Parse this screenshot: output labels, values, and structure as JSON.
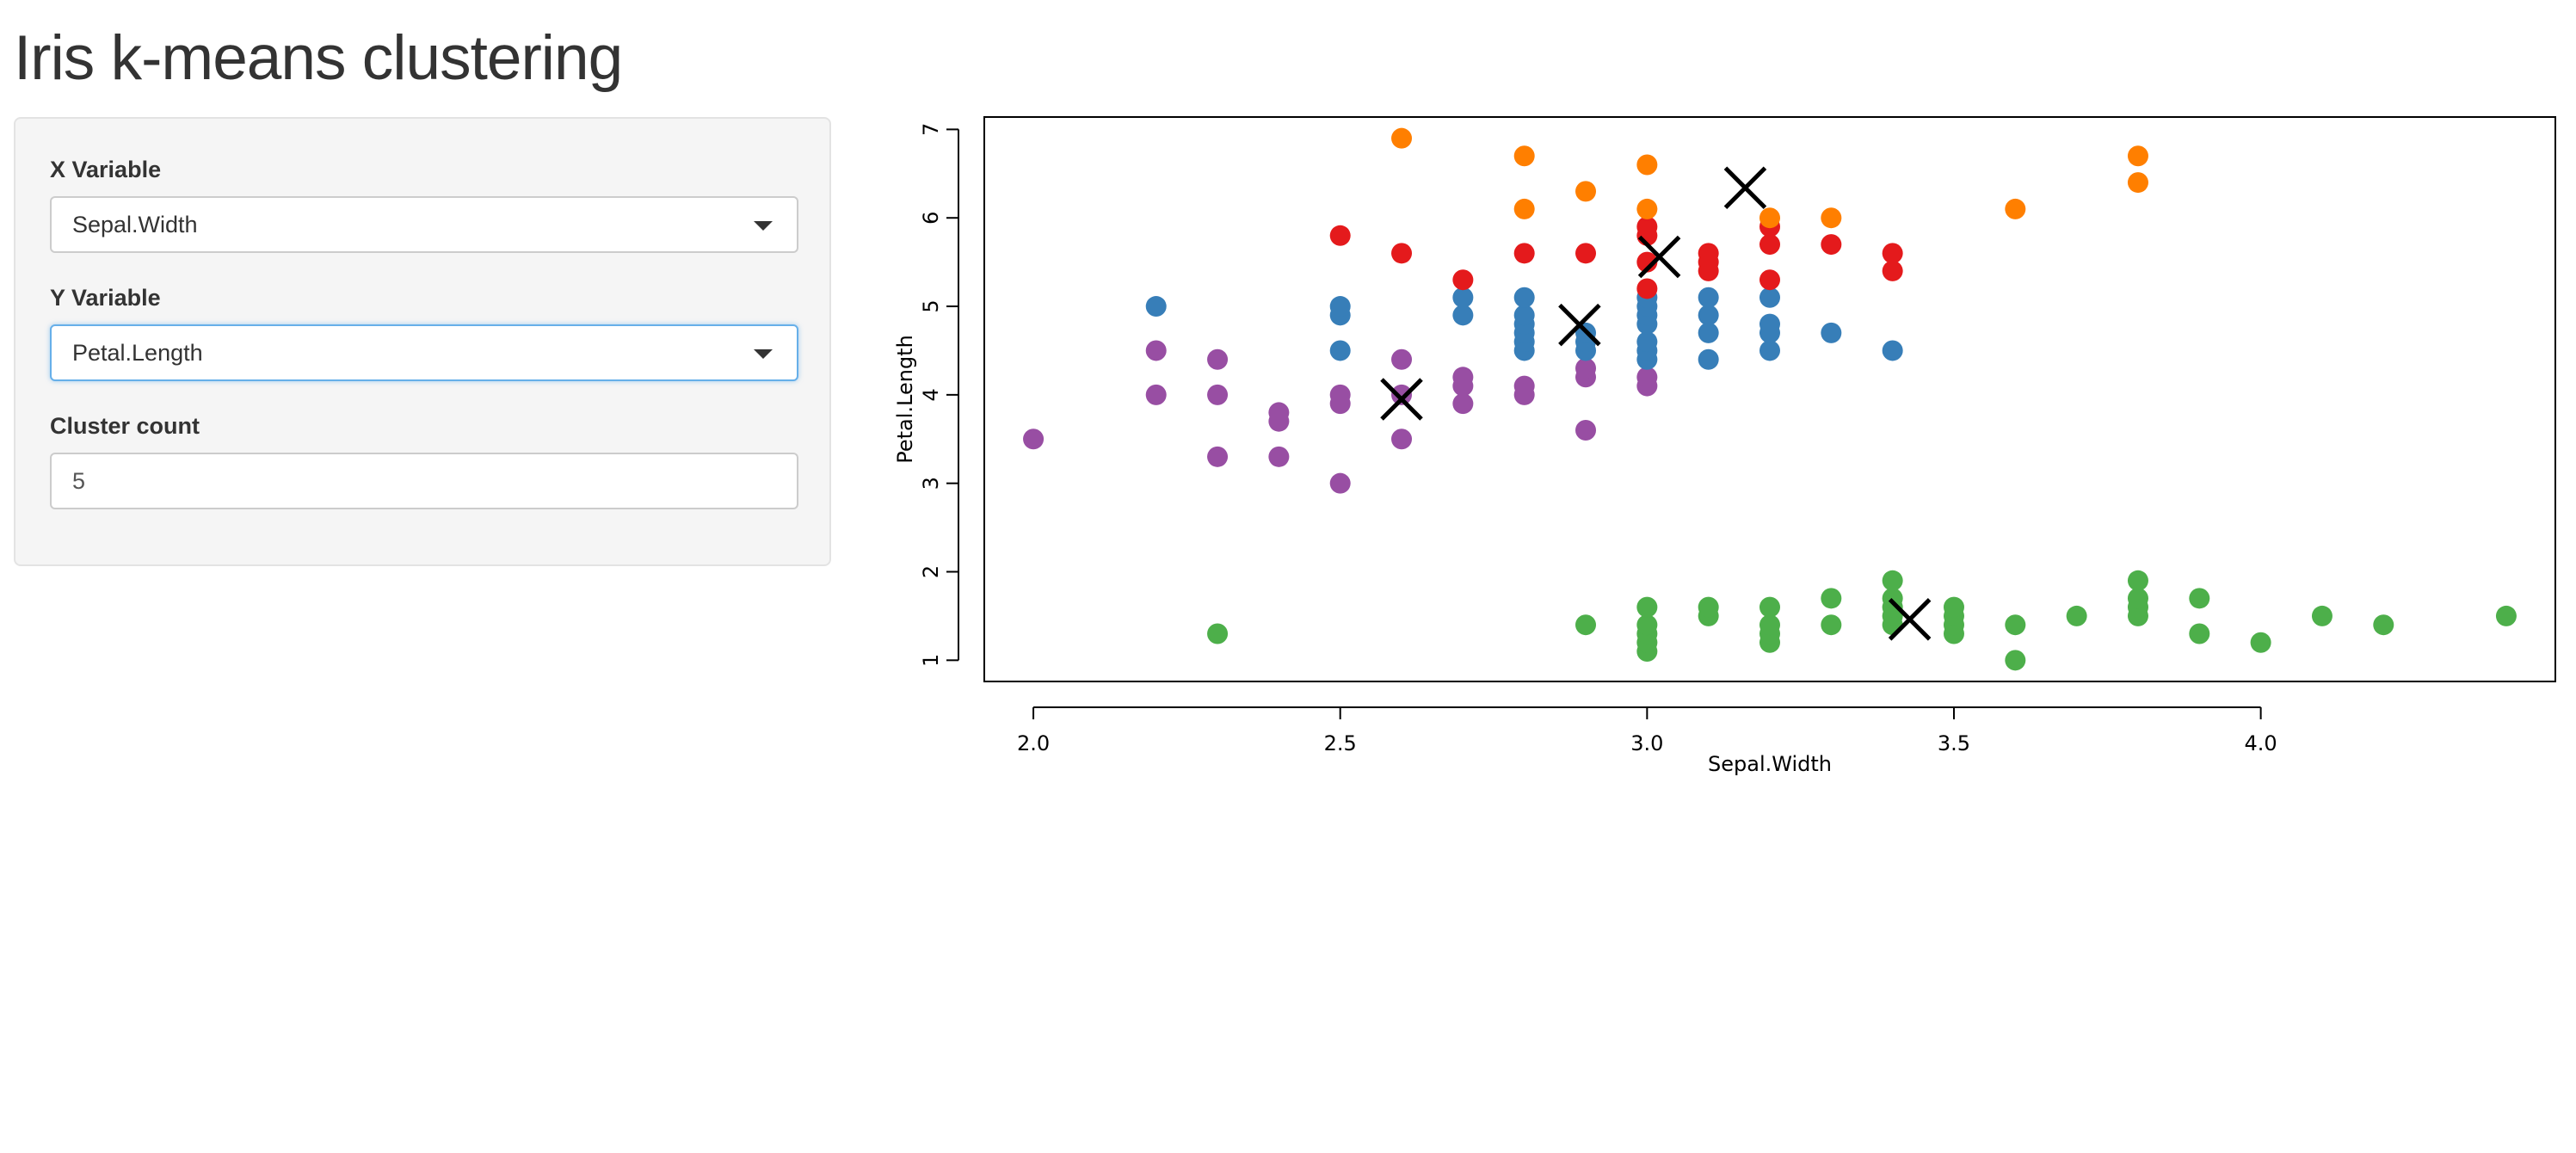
{
  "title": "Iris k-means clustering",
  "sidebar": {
    "x_label": "X Variable",
    "x_value": "Sepal.Width",
    "y_label": "Y Variable",
    "y_value": "Petal.Length",
    "count_label": "Cluster count",
    "count_value": "5"
  },
  "chart_data": {
    "type": "scatter",
    "xlabel": "Sepal.Width",
    "ylabel": "Petal.Length",
    "xlim": [
      1.92,
      4.48
    ],
    "ylim": [
      0.76,
      7.14
    ],
    "xticks": [
      "2.0",
      "2.5",
      "3.0",
      "3.5",
      "4.0"
    ],
    "yticks": [
      "1",
      "2",
      "3",
      "4",
      "5",
      "6",
      "7"
    ],
    "grid": false,
    "legend": "none",
    "series": [
      {
        "color": "#4daf4a",
        "points": [
          [
            2.3,
            1.3
          ],
          [
            2.9,
            1.4
          ],
          [
            3.0,
            1.1
          ],
          [
            3.0,
            1.2
          ],
          [
            3.0,
            1.3
          ],
          [
            3.0,
            1.4
          ],
          [
            3.0,
            1.6
          ],
          [
            3.1,
            1.5
          ],
          [
            3.1,
            1.6
          ],
          [
            3.2,
            1.2
          ],
          [
            3.2,
            1.3
          ],
          [
            3.2,
            1.4
          ],
          [
            3.2,
            1.6
          ],
          [
            3.3,
            1.4
          ],
          [
            3.3,
            1.7
          ],
          [
            3.4,
            1.4
          ],
          [
            3.4,
            1.5
          ],
          [
            3.4,
            1.6
          ],
          [
            3.4,
            1.7
          ],
          [
            3.4,
            1.9
          ],
          [
            3.5,
            1.3
          ],
          [
            3.5,
            1.4
          ],
          [
            3.5,
            1.5
          ],
          [
            3.5,
            1.6
          ],
          [
            3.6,
            1.0
          ],
          [
            3.6,
            1.4
          ],
          [
            3.7,
            1.5
          ],
          [
            3.8,
            1.5
          ],
          [
            3.8,
            1.6
          ],
          [
            3.8,
            1.7
          ],
          [
            3.8,
            1.9
          ],
          [
            3.9,
            1.3
          ],
          [
            3.9,
            1.7
          ],
          [
            4.0,
            1.2
          ],
          [
            4.1,
            1.5
          ],
          [
            4.2,
            1.4
          ],
          [
            4.4,
            1.5
          ]
        ]
      },
      {
        "color": "#984ea3",
        "points": [
          [
            2.0,
            3.5
          ],
          [
            2.2,
            4.0
          ],
          [
            2.2,
            4.5
          ],
          [
            2.3,
            3.3
          ],
          [
            2.3,
            4.0
          ],
          [
            2.3,
            4.4
          ],
          [
            2.4,
            3.3
          ],
          [
            2.4,
            3.7
          ],
          [
            2.4,
            3.8
          ],
          [
            2.5,
            3.0
          ],
          [
            2.5,
            3.9
          ],
          [
            2.5,
            4.0
          ],
          [
            2.6,
            3.5
          ],
          [
            2.6,
            4.0
          ],
          [
            2.6,
            4.4
          ],
          [
            2.7,
            3.9
          ],
          [
            2.7,
            4.1
          ],
          [
            2.7,
            4.2
          ],
          [
            2.8,
            4.0
          ],
          [
            2.8,
            4.1
          ],
          [
            2.9,
            3.6
          ],
          [
            2.9,
            4.2
          ],
          [
            2.9,
            4.3
          ],
          [
            3.0,
            4.1
          ],
          [
            3.0,
            4.2
          ]
        ]
      },
      {
        "color": "#377eb8",
        "points": [
          [
            2.2,
            5.0
          ],
          [
            2.5,
            4.5
          ],
          [
            2.5,
            4.9
          ],
          [
            2.5,
            5.0
          ],
          [
            2.7,
            4.9
          ],
          [
            2.7,
            5.1
          ],
          [
            2.8,
            4.5
          ],
          [
            2.8,
            4.6
          ],
          [
            2.8,
            4.7
          ],
          [
            2.8,
            4.8
          ],
          [
            2.8,
            4.9
          ],
          [
            2.8,
            5.1
          ],
          [
            2.9,
            4.5
          ],
          [
            2.9,
            4.6
          ],
          [
            2.9,
            4.7
          ],
          [
            3.0,
            4.4
          ],
          [
            3.0,
            4.5
          ],
          [
            3.0,
            4.6
          ],
          [
            3.0,
            4.8
          ],
          [
            3.0,
            4.9
          ],
          [
            3.0,
            5.0
          ],
          [
            3.0,
            5.1
          ],
          [
            3.1,
            4.4
          ],
          [
            3.1,
            4.7
          ],
          [
            3.1,
            4.9
          ],
          [
            3.1,
            5.1
          ],
          [
            3.2,
            4.5
          ],
          [
            3.2,
            4.7
          ],
          [
            3.2,
            4.8
          ],
          [
            3.2,
            5.1
          ],
          [
            3.3,
            4.7
          ],
          [
            3.4,
            4.5
          ]
        ]
      },
      {
        "color": "#e41a1c",
        "points": [
          [
            2.5,
            5.8
          ],
          [
            2.6,
            5.6
          ],
          [
            2.7,
            5.3
          ],
          [
            2.8,
            5.6
          ],
          [
            2.9,
            5.6
          ],
          [
            3.0,
            5.2
          ],
          [
            3.0,
            5.5
          ],
          [
            3.0,
            5.8
          ],
          [
            3.0,
            5.9
          ],
          [
            3.1,
            5.4
          ],
          [
            3.1,
            5.5
          ],
          [
            3.1,
            5.6
          ],
          [
            3.2,
            5.3
          ],
          [
            3.2,
            5.7
          ],
          [
            3.2,
            5.9
          ],
          [
            3.3,
            5.7
          ],
          [
            3.4,
            5.4
          ],
          [
            3.4,
            5.6
          ]
        ]
      },
      {
        "color": "#ff7f00",
        "points": [
          [
            2.6,
            6.9
          ],
          [
            2.8,
            6.1
          ],
          [
            2.8,
            6.7
          ],
          [
            2.9,
            6.3
          ],
          [
            3.0,
            6.1
          ],
          [
            3.0,
            6.6
          ],
          [
            3.2,
            6.0
          ],
          [
            3.3,
            6.0
          ],
          [
            3.6,
            6.1
          ],
          [
            3.8,
            6.4
          ],
          [
            3.8,
            6.7
          ]
        ]
      }
    ],
    "centers": [
      [
        3.428,
        1.462
      ],
      [
        2.6,
        3.95
      ],
      [
        2.89,
        4.79
      ],
      [
        3.02,
        5.56
      ],
      [
        3.16,
        6.34
      ]
    ]
  }
}
